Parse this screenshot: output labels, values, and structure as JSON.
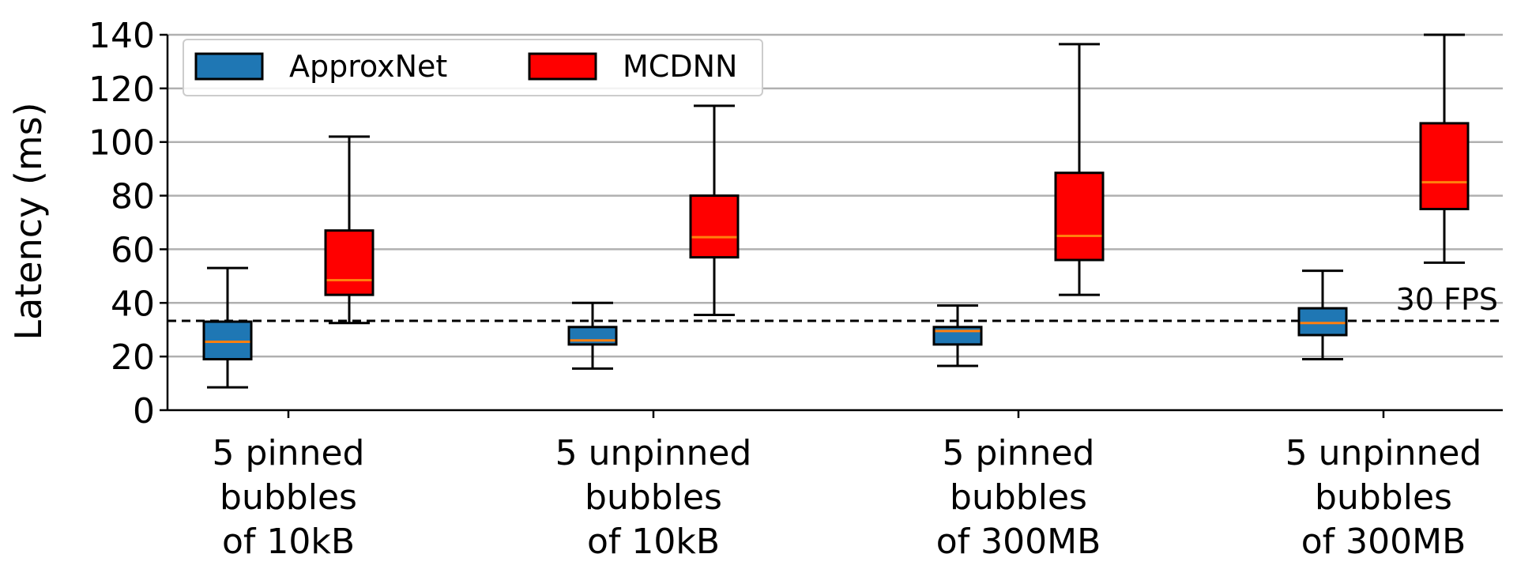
{
  "chart_data": {
    "type": "box",
    "ylabel": "Latency (ms)",
    "xlabel": "",
    "ylim": [
      0,
      140
    ],
    "yticks": [
      0,
      20,
      40,
      60,
      80,
      100,
      120,
      140
    ],
    "grid": "horizontal",
    "legend_position": "top-left",
    "categories": [
      [
        "5 pinned",
        "bubbles",
        "of 10kB"
      ],
      [
        "5 unpinned",
        "bubbles",
        "of 10kB"
      ],
      [
        "5 pinned",
        "bubbles",
        "of 300MB"
      ],
      [
        "5 unpinned",
        "bubbles",
        "of 300MB"
      ]
    ],
    "series": [
      {
        "name": "ApproxNet",
        "color": "#1f77b4",
        "boxes": [
          {
            "whislo": 8.5,
            "q1": 19,
            "med": 25.5,
            "q3": 33,
            "whishi": 53
          },
          {
            "whislo": 15.5,
            "q1": 24.5,
            "med": 26,
            "q3": 31,
            "whishi": 40
          },
          {
            "whislo": 16.5,
            "q1": 24.5,
            "med": 29.5,
            "q3": 31,
            "whishi": 39
          },
          {
            "whislo": 19,
            "q1": 28,
            "med": 32.5,
            "q3": 38,
            "whishi": 52
          }
        ]
      },
      {
        "name": "MCDNN",
        "color": "#ff0000",
        "boxes": [
          {
            "whislo": 32.5,
            "q1": 43,
            "med": 48.5,
            "q3": 67,
            "whishi": 102
          },
          {
            "whislo": 35.5,
            "q1": 57,
            "med": 64.5,
            "q3": 80,
            "whishi": 113.5
          },
          {
            "whislo": 43,
            "q1": 56,
            "med": 65,
            "q3": 88.5,
            "whishi": 136.5
          },
          {
            "whislo": 55,
            "q1": 75,
            "med": 85,
            "q3": 107,
            "whishi": 140
          }
        ]
      }
    ],
    "median_color": "#ff7f0e",
    "reference_line": {
      "y": 33.3,
      "label": "30 FPS",
      "style": "dashed"
    }
  }
}
